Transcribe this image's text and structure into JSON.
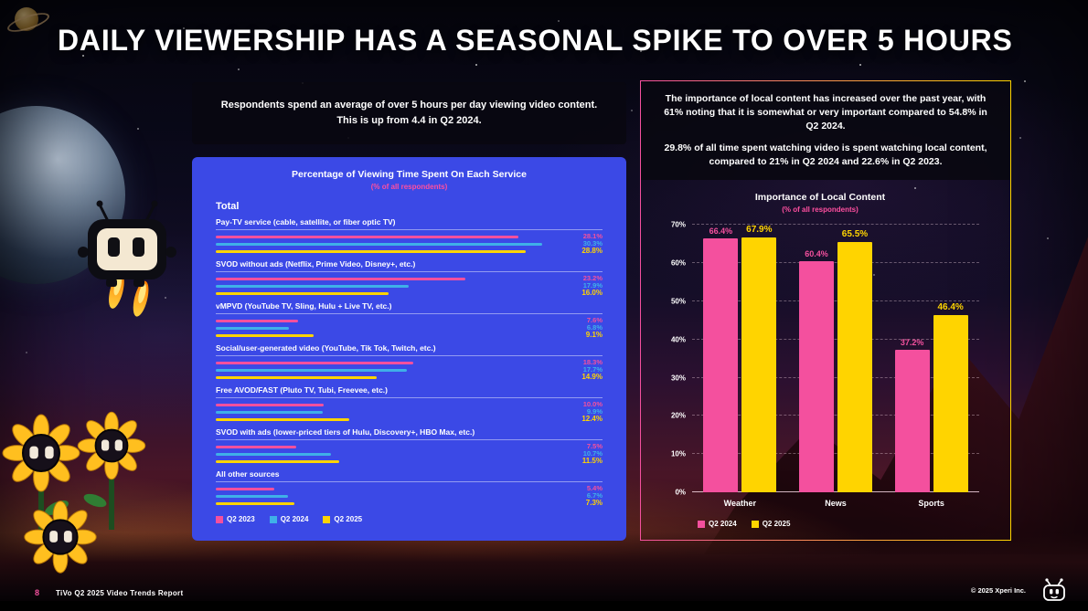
{
  "title": "DAILY VIEWERSHIP HAS A SEASONAL SPIKE TO OVER 5 HOURS",
  "left_callout": {
    "line1": "Respondents spend an average of over 5 hours per day viewing video content.",
    "line2": "This is up from 4.4 in Q2 2024."
  },
  "right_callout": {
    "p1": "The importance of local content has increased over the past year, with 61% noting that it is somewhat or very important compared to 54.8% in Q2 2024.",
    "p2": "29.8% of all time spent watching video is spent watching local content, compared to 21% in Q2 2024 and 22.6% in Q2 2023."
  },
  "footer": {
    "page_number": "8",
    "report_name": "TiVo Q2 2025 Video Trends Report",
    "copyright": "© 2025 Xperi Inc."
  },
  "colors": {
    "pink": "#F4509E",
    "blue": "#3FB0E8",
    "yellow": "#FFD400",
    "panel_blue": "#3B49E6",
    "accent_pink": "#FF4FA0"
  },
  "chart_data": [
    {
      "type": "bar",
      "orientation": "horizontal",
      "title": "Percentage of Viewing Time Spent On Each Service",
      "subtitle": "(% of all respondents)",
      "group_label": "Total",
      "categories": [
        "Pay-TV service (cable, satellite, or fiber optic TV)",
        "SVOD without ads (Netflix, Prime Video, Disney+, etc.)",
        "vMPVD (YouTube TV, Sling, Hulu + Live TV, etc.)",
        "Social/user-generated video (YouTube, Tik Tok, Twitch, etc.)",
        "Free AVOD/FAST (Pluto TV, Tubi, Freevee, etc.)",
        "SVOD with ads (lower-priced tiers of Hulu, Discovery+, HBO Max, etc.)",
        "All other sources"
      ],
      "series": [
        {
          "name": "Q2 2023",
          "color": "#F4509E",
          "values": [
            28.1,
            23.2,
            7.6,
            18.3,
            10.0,
            7.5,
            5.4
          ]
        },
        {
          "name": "Q2 2024",
          "color": "#3FB0E8",
          "values": [
            30.3,
            17.9,
            6.8,
            17.7,
            9.9,
            10.7,
            6.7
          ]
        },
        {
          "name": "Q2 2025",
          "color": "#FFD400",
          "values": [
            28.8,
            16.0,
            9.1,
            14.9,
            12.4,
            11.5,
            7.3
          ]
        }
      ],
      "xlim": [
        0,
        32
      ],
      "legend_position": "bottom"
    },
    {
      "type": "bar",
      "orientation": "vertical",
      "title": "Importance of Local Content",
      "subtitle": "(% of all respondents)",
      "categories": [
        "Weather",
        "News",
        "Sports"
      ],
      "series": [
        {
          "name": "Q2 2024",
          "color": "#F4509E",
          "values": [
            66.4,
            60.4,
            37.2
          ]
        },
        {
          "name": "Q2 2025",
          "color": "#FFD400",
          "values": [
            67.9,
            65.5,
            46.4
          ]
        }
      ],
      "ylim": [
        0,
        70
      ],
      "yticks": [
        "0%",
        "10%",
        "20%",
        "30%",
        "40%",
        "50%",
        "60%",
        "70%"
      ],
      "grid": "dashed horizontal",
      "legend_position": "bottom-left"
    }
  ]
}
